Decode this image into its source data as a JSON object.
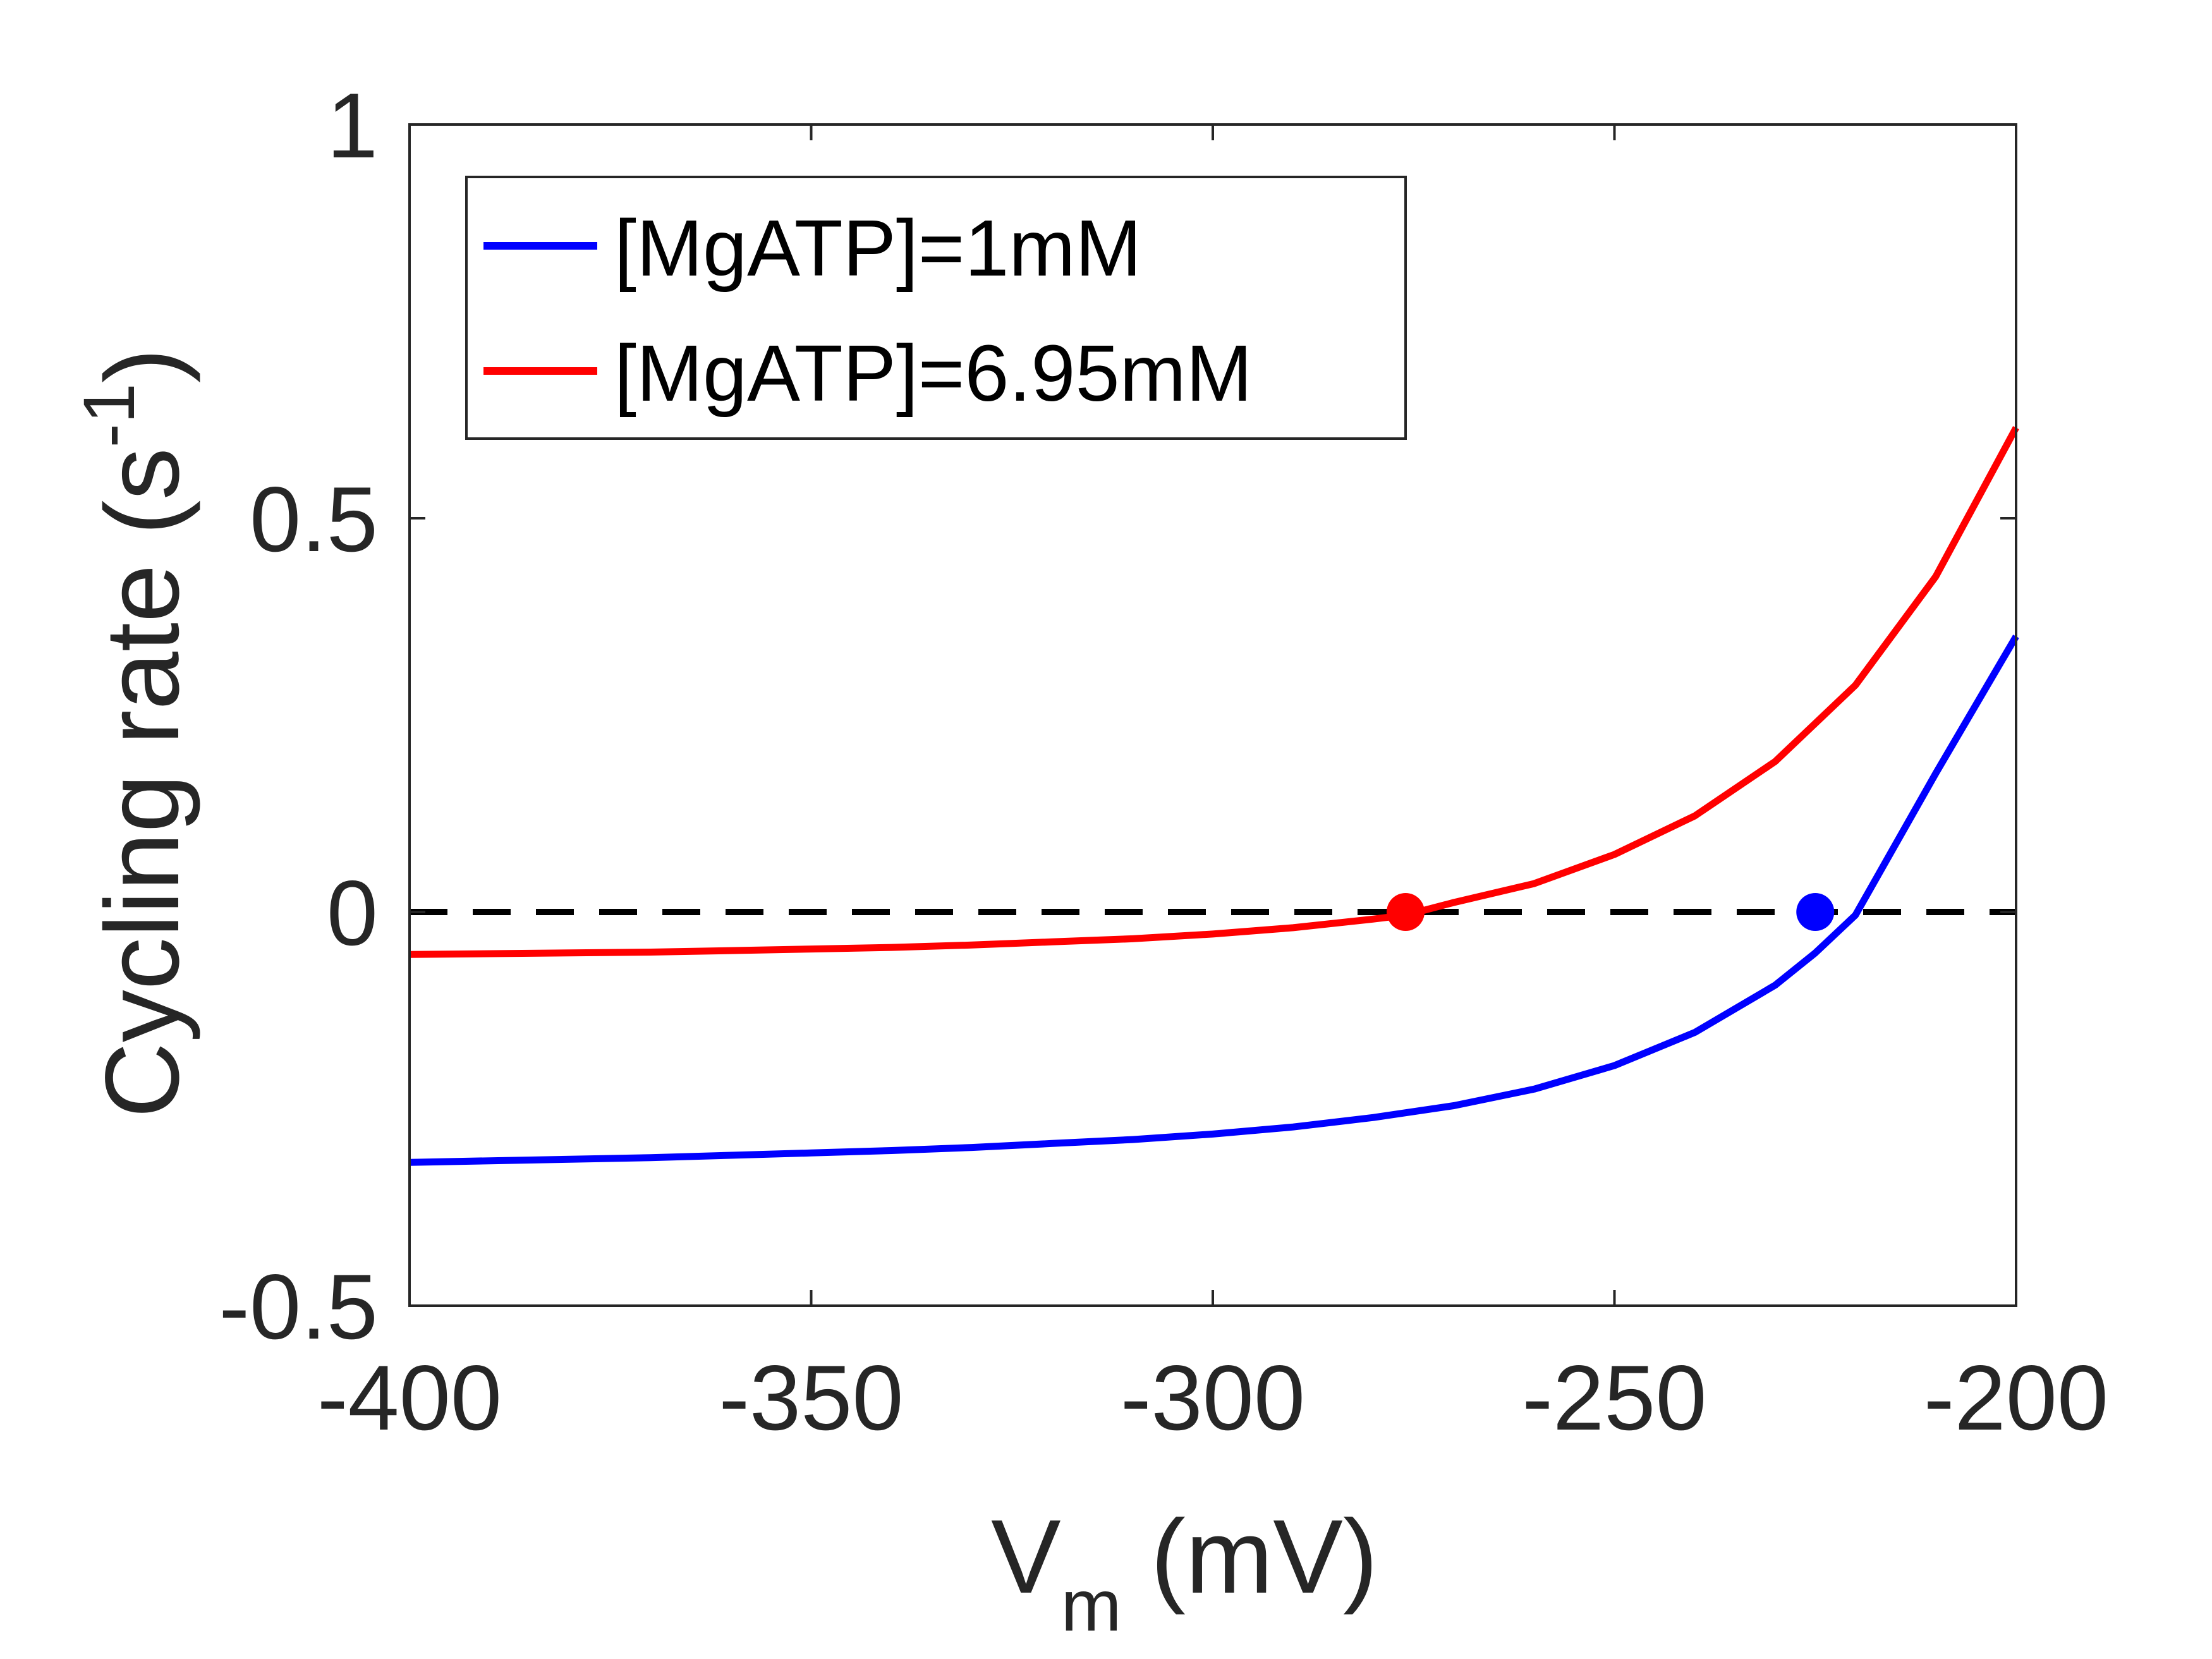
{
  "chart_data": {
    "type": "line",
    "xlabel": {
      "main": "V",
      "sub": "m",
      "rest": " (mV)"
    },
    "ylabel": {
      "main": "Cycling rate (s",
      "sup": "-1",
      "rest": ")"
    },
    "xlim": [
      -400,
      -200
    ],
    "ylim": [
      -0.5,
      1
    ],
    "xticks": [
      -400,
      -350,
      -300,
      -250,
      -200
    ],
    "xtick_labels": [
      "-400",
      "-350",
      "-300",
      "-250",
      "-200"
    ],
    "yticks": [
      -0.5,
      0,
      0.5,
      1
    ],
    "ytick_labels": [
      "-0.5",
      "0",
      "0.5",
      "1"
    ],
    "grid": false,
    "legend_position": "top-left",
    "zero_line": {
      "y": 0,
      "style": "dashed",
      "color": "#000000"
    },
    "series": [
      {
        "name": "[MgATP]=1mM",
        "color": "#0000ff",
        "x": [
          -400,
          -390,
          -380,
          -370,
          -360,
          -350,
          -340,
          -330,
          -320,
          -310,
          -300,
          -290,
          -280,
          -270,
          -260,
          -250,
          -240,
          -230,
          -225,
          -220,
          -210,
          -200
        ],
        "y": [
          -0.318,
          -0.316,
          -0.314,
          -0.312,
          -0.309,
          -0.306,
          -0.303,
          -0.299,
          -0.294,
          -0.289,
          -0.282,
          -0.273,
          -0.261,
          -0.246,
          -0.225,
          -0.195,
          -0.153,
          -0.093,
          -0.052,
          -0.004,
          0.176,
          0.35
        ]
      },
      {
        "name": "[MgATP]=6.95mM",
        "color": "#ff0000",
        "x": [
          -400,
          -390,
          -380,
          -370,
          -360,
          -350,
          -340,
          -330,
          -320,
          -310,
          -300,
          -290,
          -280,
          -276,
          -270,
          -260,
          -250,
          -240,
          -230,
          -220,
          -210,
          -200
        ],
        "y": [
          -0.054,
          -0.053,
          -0.052,
          -0.051,
          -0.049,
          -0.047,
          -0.045,
          -0.042,
          -0.038,
          -0.034,
          -0.028,
          -0.02,
          -0.009,
          -0.004,
          0.012,
          0.036,
          0.073,
          0.122,
          0.191,
          0.288,
          0.426,
          0.615
        ]
      }
    ],
    "markers": [
      {
        "series": "[MgATP]=6.95mM",
        "x": -276,
        "y": 0,
        "color": "#ff0000"
      },
      {
        "series": "[MgATP]=1mM",
        "x": -225,
        "y": 0,
        "color": "#0000ff"
      }
    ]
  }
}
